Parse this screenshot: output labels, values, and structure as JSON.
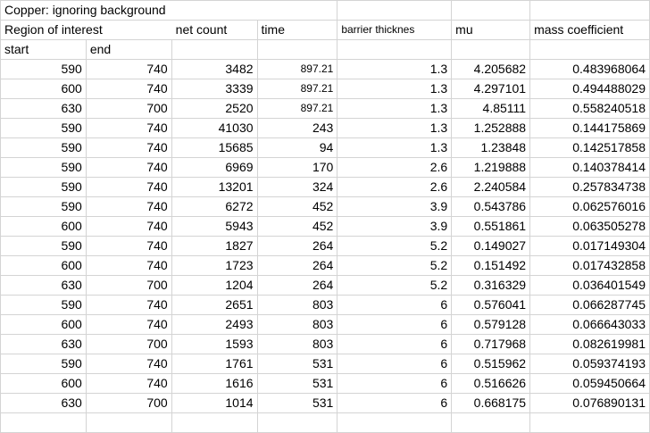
{
  "sheet": {
    "title": "Copper: ignoring background",
    "headers": {
      "region": "Region of interest",
      "net_count": "net count",
      "time": "time",
      "barrier": "barrier thicknes",
      "mu": "mu",
      "mass": "mass coefficient"
    },
    "subheaders": {
      "start": "start",
      "end": "end"
    },
    "rows": [
      [
        "590",
        "740",
        "3482",
        "897.21",
        "1.3",
        "4.205682",
        "0.483968064"
      ],
      [
        "600",
        "740",
        "3339",
        "897.21",
        "1.3",
        "4.297101",
        "0.494488029"
      ],
      [
        "630",
        "700",
        "2520",
        "897.21",
        "1.3",
        "4.85111",
        "0.558240518"
      ],
      [
        "590",
        "740",
        "41030",
        "243",
        "1.3",
        "1.252888",
        "0.144175869"
      ],
      [
        "590",
        "740",
        "15685",
        "94",
        "1.3",
        "1.23848",
        "0.142517858"
      ],
      [
        "590",
        "740",
        "6969",
        "170",
        "2.6",
        "1.219888",
        "0.140378414"
      ],
      [
        "590",
        "740",
        "13201",
        "324",
        "2.6",
        "2.240584",
        "0.257834738"
      ],
      [
        "590",
        "740",
        "6272",
        "452",
        "3.9",
        "0.543786",
        "0.062576016"
      ],
      [
        "600",
        "740",
        "5943",
        "452",
        "3.9",
        "0.551861",
        "0.063505278"
      ],
      [
        "590",
        "740",
        "1827",
        "264",
        "5.2",
        "0.149027",
        "0.017149304"
      ],
      [
        "600",
        "740",
        "1723",
        "264",
        "5.2",
        "0.151492",
        "0.017432858"
      ],
      [
        "630",
        "700",
        "1204",
        "264",
        "5.2",
        "0.316329",
        "0.036401549"
      ],
      [
        "590",
        "740",
        "2651",
        "803",
        "6",
        "0.576041",
        "0.066287745"
      ],
      [
        "600",
        "740",
        "2493",
        "803",
        "6",
        "0.579128",
        "0.066643033"
      ],
      [
        "630",
        "700",
        "1593",
        "803",
        "6",
        "0.717968",
        "0.082619981"
      ],
      [
        "590",
        "740",
        "1761",
        "531",
        "6",
        "0.515962",
        "0.059374193"
      ],
      [
        "600",
        "740",
        "1616",
        "531",
        "6",
        "0.516626",
        "0.059450664"
      ],
      [
        "630",
        "700",
        "1014",
        "531",
        "6",
        "0.668175",
        "0.076890131"
      ]
    ]
  }
}
